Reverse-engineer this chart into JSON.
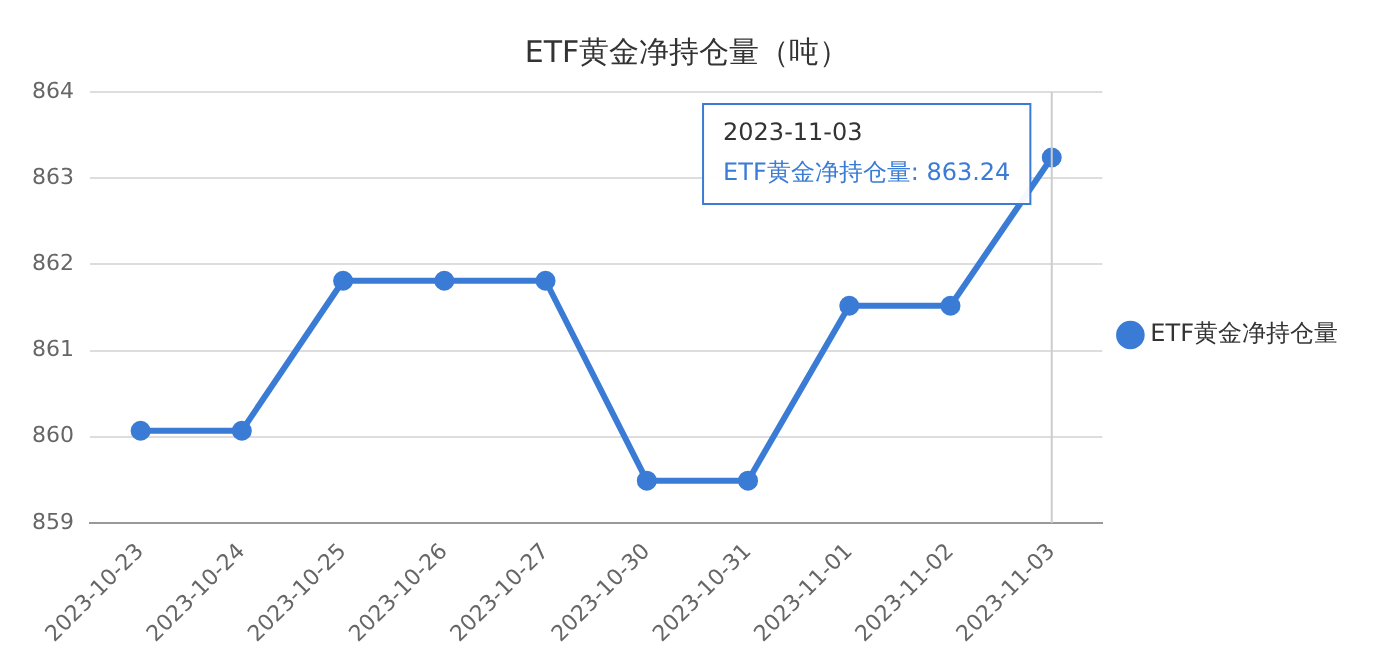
{
  "chart_data": {
    "type": "line",
    "title": "ETF黄金净持仓量（吨）",
    "categories": [
      "2023-10-23",
      "2023-10-24",
      "2023-10-25",
      "2023-10-26",
      "2023-10-27",
      "2023-10-30",
      "2023-10-31",
      "2023-11-01",
      "2023-11-02",
      "2023-11-03"
    ],
    "series": [
      {
        "name": "ETF黄金净持仓量",
        "color": "#3a7bd5",
        "values": [
          860.07,
          860.07,
          861.81,
          861.81,
          861.81,
          859.49,
          859.49,
          861.52,
          861.52,
          863.24
        ]
      }
    ],
    "ylim": [
      859,
      864
    ],
    "yticks": [
      859,
      860,
      861,
      862,
      863,
      864
    ],
    "grid": "y",
    "legend": "right",
    "marker": "circle",
    "line_style": "solid",
    "ref_lines": [
      {
        "axis": "x",
        "value": "2023-11-03",
        "color": "#cccccc"
      }
    ],
    "annotations": [
      "2023-11-03",
      "ETF黄金净持仓量: 863.24"
    ]
  }
}
